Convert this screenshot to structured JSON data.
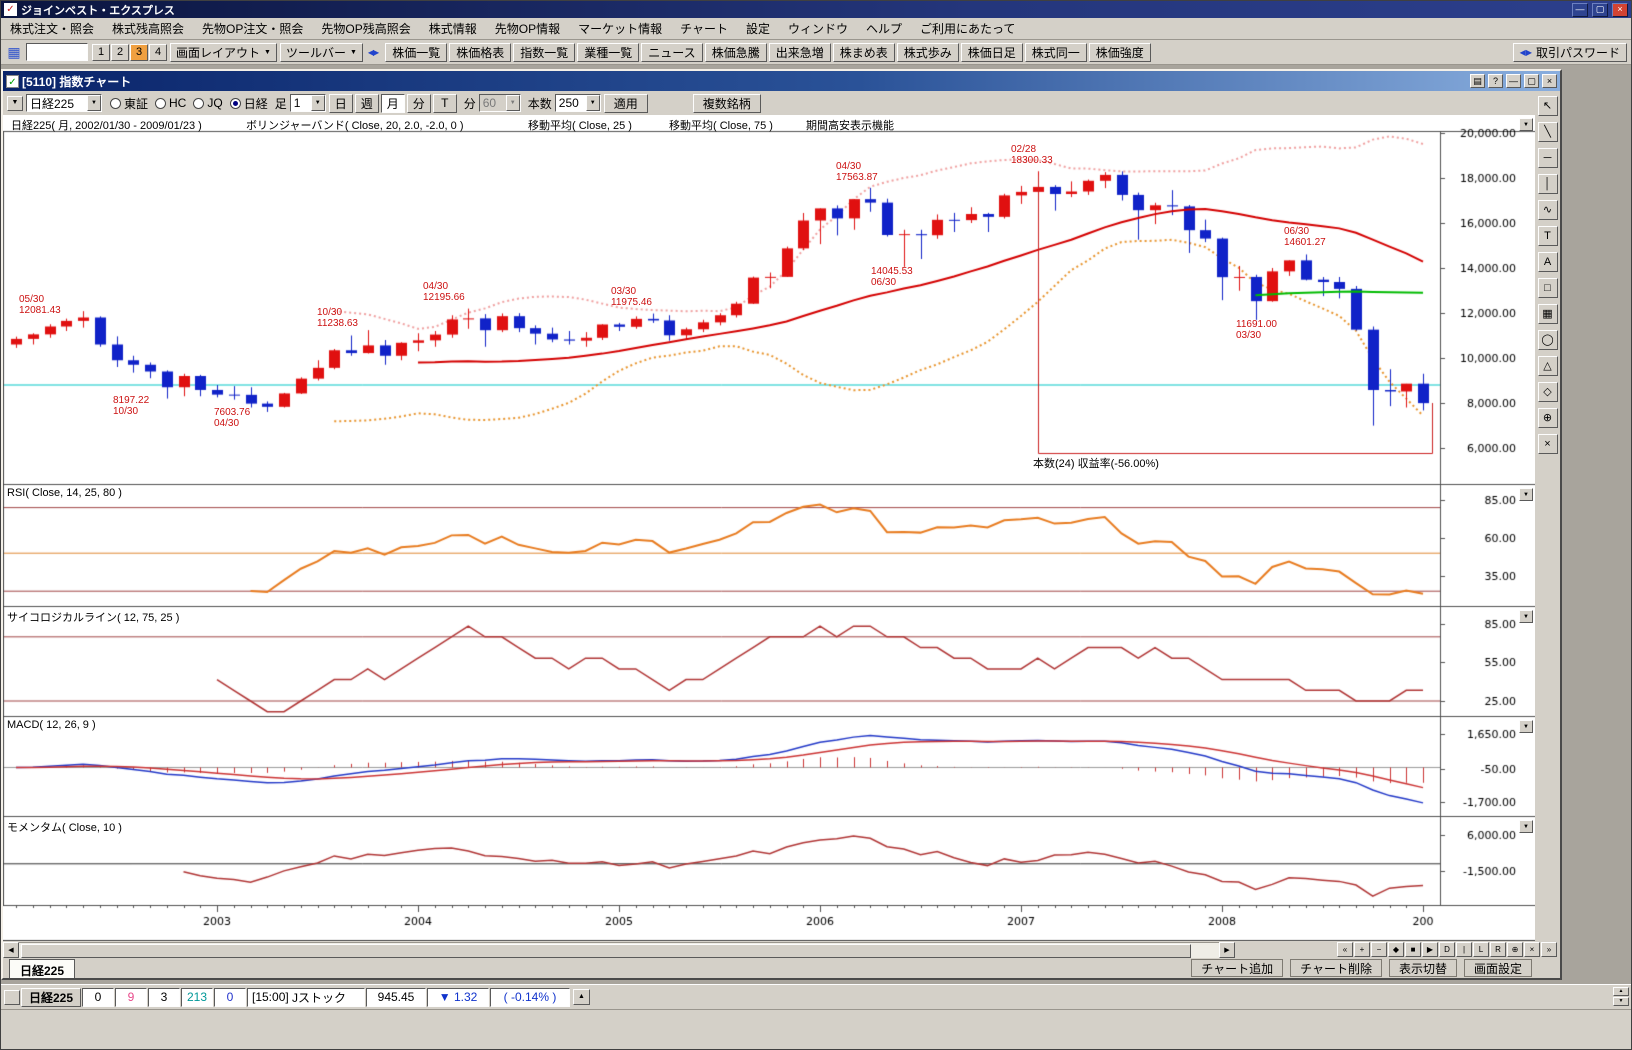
{
  "window": {
    "title": "ジョインベスト・エクスプレス"
  },
  "menubar": [
    "株式注文・照会",
    "株式残高照会",
    "先物OP注文・照会",
    "先物OP残高照会",
    "株式情報",
    "先物OP情報",
    "マーケット情報",
    "チャート",
    "設定",
    "ウィンドウ",
    "ヘルプ",
    "ご利用にあたって"
  ],
  "toolbar": {
    "presets": [
      "1",
      "2",
      "3",
      "4"
    ],
    "active_preset": "3",
    "layout_menu": "画面レイアウト",
    "toolbar_menu": "ツールバー",
    "quick_buttons": [
      "株価一覧",
      "株価格表",
      "指数一覧",
      "業種一覧",
      "ニュース",
      "株価急騰",
      "出来急増",
      "株まめ表",
      "株式歩み",
      "株価日足",
      "株式同一",
      "株価強度"
    ],
    "password_button": "取引パスワード",
    "search_value": ""
  },
  "chart_window": {
    "title": "[5110] 指数チャート",
    "toolbar": {
      "symbol_select": "日経225",
      "markets": [
        {
          "label": "東証",
          "selected": false
        },
        {
          "label": "HC",
          "selected": false
        },
        {
          "label": "JQ",
          "selected": false
        },
        {
          "label": "日経",
          "selected": true
        }
      ],
      "bar_label": "足",
      "bar_value": "1",
      "periods": [
        "日",
        "週",
        "月",
        "分",
        "T"
      ],
      "active_period": "月",
      "minute_label": "分",
      "minute_value": "60",
      "count_label": "本数",
      "count_value": "250",
      "apply_button": "適用",
      "multi_button": "複数銘柄"
    },
    "header_labels": [
      "日経225( 月, 2002/01/30 - 2009/01/23 )",
      "ボリンジャーバンド( Close, 20, 2.0, -2.0, 0 )",
      "移動平均( Close, 25 )",
      "移動平均( Close, 75 )",
      "期間高安表示機能"
    ],
    "tab": "日経225",
    "bottom_buttons": [
      "チャート追加",
      "チャート削除",
      "表示切替",
      "画面設定"
    ]
  },
  "drawing_tools": [
    {
      "name": "select-tool",
      "glyph": "↖"
    },
    {
      "name": "trend-line-tool",
      "glyph": "╲"
    },
    {
      "name": "horizontal-line-tool",
      "glyph": "─"
    },
    {
      "name": "vertical-line-tool",
      "glyph": "│"
    },
    {
      "name": "wave-tool",
      "glyph": "∿"
    },
    {
      "name": "text-tool",
      "glyph": "T"
    },
    {
      "name": "label-tool",
      "glyph": "A"
    },
    {
      "name": "rectangle-tool",
      "glyph": "□"
    },
    {
      "name": "grid-tool",
      "glyph": "▦"
    },
    {
      "name": "ellipse-tool",
      "glyph": "◯"
    },
    {
      "name": "triangle-tool",
      "glyph": "△"
    },
    {
      "name": "diamond-tool",
      "glyph": "◇"
    },
    {
      "name": "zoom-tool",
      "glyph": "⊕"
    },
    {
      "name": "erase-tool",
      "glyph": "×"
    }
  ],
  "scrollbar_nav": [
    "«",
    "+",
    "−",
    "◆",
    "■",
    "▶",
    "D",
    "|",
    "L",
    "R",
    "⊕",
    "×",
    "»"
  ],
  "ticker": {
    "symbol": "日経225",
    "counts": [
      {
        "value": "0",
        "color": "#000000"
      },
      {
        "value": "9",
        "color": "#e8488a"
      },
      {
        "value": "3",
        "color": "#000000"
      },
      {
        "value": "213",
        "color": "#009898"
      },
      {
        "value": "0",
        "color": "#2233cc"
      }
    ],
    "time": "[15:00]",
    "name": "Jストック",
    "price": "945.45",
    "direction": "▼",
    "change": "1.32",
    "change_pct": "( -0.14% )"
  },
  "chart_data": {
    "type": "candlestick",
    "symbol": "日経225",
    "interval": "月",
    "date_range": "2002/01/30 - 2009/01/23",
    "first_month": "2002-01",
    "last_month": "2009-01",
    "up_color": "#e01010",
    "down_color": "#1022c8",
    "ohlc": [
      [
        10600,
        10950,
        10450,
        10850
      ],
      [
        10850,
        11100,
        10600,
        11050
      ],
      [
        11050,
        11500,
        10900,
        11400
      ],
      [
        11400,
        11750,
        11200,
        11650
      ],
      [
        11650,
        12081,
        11350,
        11800
      ],
      [
        11800,
        11850,
        10500,
        10600
      ],
      [
        10600,
        10960,
        9600,
        9900
      ],
      [
        9900,
        10100,
        9350,
        9700
      ],
      [
        9700,
        9800,
        9100,
        9400
      ],
      [
        9400,
        9450,
        8197,
        8700
      ],
      [
        8700,
        9300,
        8300,
        9200
      ],
      [
        9200,
        9250,
        8300,
        8580
      ],
      [
        8580,
        8800,
        8250,
        8372
      ],
      [
        8372,
        8750,
        8150,
        8363
      ],
      [
        8363,
        8700,
        7800,
        7973
      ],
      [
        7973,
        8070,
        7603,
        7831
      ],
      [
        7831,
        8450,
        7800,
        8425
      ],
      [
        8425,
        9140,
        8400,
        9083
      ],
      [
        9083,
        9900,
        9000,
        9563
      ],
      [
        9563,
        10400,
        9500,
        10343
      ],
      [
        10343,
        11000,
        10100,
        10219
      ],
      [
        10219,
        11238,
        10200,
        10559
      ],
      [
        10559,
        10800,
        9700,
        10100
      ],
      [
        10100,
        10700,
        9900,
        10676
      ],
      [
        10676,
        11100,
        10300,
        10784
      ],
      [
        10784,
        11200,
        10500,
        11041
      ],
      [
        11041,
        11900,
        10900,
        11715
      ],
      [
        11715,
        12195,
        11300,
        11761
      ],
      [
        11761,
        11950,
        10500,
        11236
      ],
      [
        11236,
        11980,
        11150,
        11858
      ],
      [
        11858,
        11990,
        11150,
        11326
      ],
      [
        11326,
        11450,
        10600,
        11082
      ],
      [
        11082,
        11350,
        10700,
        10824
      ],
      [
        10824,
        11200,
        10600,
        10771
      ],
      [
        10771,
        11150,
        10500,
        10899
      ],
      [
        10899,
        11500,
        10800,
        11489
      ],
      [
        11489,
        11560,
        11200,
        11387
      ],
      [
        11387,
        11850,
        11300,
        11740
      ],
      [
        11740,
        11975,
        11560,
        11668
      ],
      [
        11668,
        11900,
        10770,
        11009
      ],
      [
        11009,
        11350,
        10850,
        11276
      ],
      [
        11276,
        11700,
        11150,
        11584
      ],
      [
        11584,
        11990,
        11450,
        11900
      ],
      [
        11900,
        12500,
        11800,
        12414
      ],
      [
        12414,
        13617,
        12400,
        13574
      ],
      [
        13574,
        13800,
        13100,
        13606
      ],
      [
        13606,
        14950,
        13600,
        14872
      ],
      [
        14872,
        16445,
        14800,
        16111
      ],
      [
        16111,
        16650,
        15060,
        16649
      ],
      [
        16649,
        16780,
        15450,
        16205
      ],
      [
        16205,
        17060,
        15700,
        17060
      ],
      [
        17060,
        17563,
        16500,
        16906
      ],
      [
        16906,
        17080,
        15400,
        15467
      ],
      [
        15467,
        15700,
        14045,
        15505
      ],
      [
        15505,
        15700,
        14400,
        15457
      ],
      [
        15457,
        16380,
        15300,
        16141
      ],
      [
        16141,
        16450,
        15600,
        16128
      ],
      [
        16128,
        16700,
        16000,
        16399
      ],
      [
        16399,
        16450,
        15600,
        16274
      ],
      [
        16274,
        17300,
        16200,
        17226
      ],
      [
        17226,
        17650,
        16850,
        17383
      ],
      [
        17383,
        18300,
        17000,
        17604
      ],
      [
        17604,
        17680,
        16550,
        17288
      ],
      [
        17288,
        17850,
        17150,
        17400
      ],
      [
        17400,
        17930,
        17250,
        17876
      ],
      [
        17876,
        18260,
        17550,
        18138
      ],
      [
        18138,
        18295,
        17000,
        17249
      ],
      [
        17249,
        17350,
        15260,
        16569
      ],
      [
        16569,
        16900,
        15950,
        16786
      ],
      [
        16786,
        17460,
        16350,
        16737
      ],
      [
        16737,
        16800,
        14670,
        15681
      ],
      [
        15681,
        16150,
        15150,
        15308
      ],
      [
        15308,
        15350,
        12570,
        13592
      ],
      [
        13592,
        14090,
        12990,
        13603
      ],
      [
        13603,
        13700,
        11691,
        12526
      ],
      [
        12526,
        14000,
        12500,
        13850
      ],
      [
        13850,
        14340,
        13650,
        14339
      ],
      [
        14339,
        14601,
        13450,
        13481
      ],
      [
        13481,
        13600,
        12750,
        13377
      ],
      [
        13377,
        13600,
        12650,
        13073
      ],
      [
        13073,
        13200,
        11220,
        11260
      ],
      [
        11260,
        11400,
        6995,
        8577
      ],
      [
        8577,
        9500,
        7860,
        8512
      ],
      [
        8512,
        8850,
        7800,
        8860
      ],
      [
        8860,
        9300,
        7670,
        7994
      ]
    ],
    "x_ticks": {
      "indices": [
        12,
        24,
        36,
        48,
        60,
        72,
        84
      ],
      "labels": [
        "2003",
        "2004",
        "2005",
        "2006",
        "2007",
        "2008",
        "200"
      ]
    },
    "panels": {
      "main": {
        "ylim": [
          4450,
          20090
        ],
        "y_labels": [
          {
            "text": "20,000.00",
            "value": 20000
          },
          {
            "text": "18,000.00",
            "value": 18000
          },
          {
            "text": "16,000.00",
            "value": 16000
          },
          {
            "text": "14,000.00",
            "value": 14000
          },
          {
            "text": "12,000.00",
            "value": 12000
          },
          {
            "text": "10,000.00",
            "value": 10000
          },
          {
            "text": "8,000.00",
            "value": 8000
          },
          {
            "text": "6,000.00",
            "value": 6000
          }
        ]
      },
      "rsi": {
        "title": "RSI( Close, 14, 25, 80 )",
        "period": 14,
        "color": "#e87c20",
        "ref_lines": [
          80,
          50,
          25
        ],
        "y_labels": [
          {
            "text": "85.00",
            "value": 85
          },
          {
            "text": "60.00",
            "value": 60
          },
          {
            "text": "35.00",
            "value": 35
          }
        ]
      },
      "psych": {
        "title": "サイコロジカルライン( 12, 75, 25 )",
        "period": 12,
        "color": "#b03434",
        "ref_lines": [
          75,
          25
        ],
        "y_labels": [
          {
            "text": "85.00",
            "value": 85
          },
          {
            "text": "55.00",
            "value": 55
          },
          {
            "text": "25.00",
            "value": 25
          }
        ]
      },
      "macd": {
        "title": "MACD( 12, 26, 9 )",
        "fast": 12,
        "slow": 26,
        "signal": 9,
        "macd_color": "#2238c8",
        "signal_color": "#cc3333",
        "y_labels": [
          {
            "text": "1,650.00",
            "value": 1650
          },
          {
            "text": "-50.00",
            "value": -50
          },
          {
            "text": "-1,700.00",
            "value": -1700
          }
        ]
      },
      "momentum": {
        "title": "モメンタム( Close, 10 )",
        "period": 10,
        "color": "#b03434",
        "y_labels": [
          {
            "text": "6,000.00",
            "value": 6000
          },
          {
            "text": "-1,500.00",
            "value": -1500
          }
        ]
      }
    },
    "overlays": {
      "bollinger": {
        "window": 20,
        "k": 2.0,
        "upper_color": "#f0a0a0",
        "lower_color": "#e8942c"
      },
      "ma25": {
        "window": 25,
        "color": "#d40000"
      },
      "ma75": {
        "window": 75,
        "color": "#00bb00"
      },
      "h_line": {
        "value": 8800,
        "color": "#00c8c8"
      },
      "measure": {
        "from_index": 61,
        "to_index": 84,
        "label": "本数(24) 収益率(-56.00%)",
        "color": "#cc2222"
      }
    },
    "annotations": [
      {
        "lines": [
          "05/30",
          "12081.43"
        ],
        "x": 16,
        "y": 179
      },
      {
        "lines": [
          "8197.22",
          "10/30"
        ],
        "x": 110,
        "y": 280
      },
      {
        "lines": [
          "7603.76",
          "04/30"
        ],
        "x": 211,
        "y": 292
      },
      {
        "lines": [
          "10/30",
          "11238.63"
        ],
        "x": 314,
        "y": 192
      },
      {
        "lines": [
          "04/30",
          "12195.66"
        ],
        "x": 420,
        "y": 166
      },
      {
        "lines": [
          "03/30",
          "11975.46"
        ],
        "x": 608,
        "y": 171
      },
      {
        "lines": [
          "04/30",
          "17563.87"
        ],
        "x": 833,
        "y": 46
      },
      {
        "lines": [
          "14045.53",
          "06/30"
        ],
        "x": 868,
        "y": 151
      },
      {
        "lines": [
          "02/28",
          "18300.33"
        ],
        "x": 1008,
        "y": 29
      },
      {
        "lines": [
          "06/30",
          "14601.27"
        ],
        "x": 1281,
        "y": 111
      },
      {
        "lines": [
          "11691.00",
          "03/30"
        ],
        "x": 1233,
        "y": 204
      }
    ]
  }
}
